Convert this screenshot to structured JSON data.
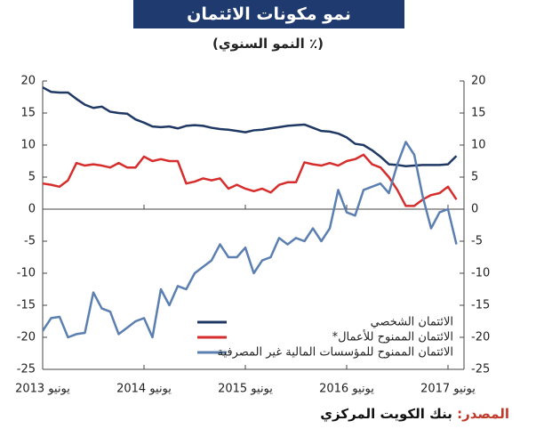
{
  "chart_data": {
    "type": "line",
    "title": "نمو مكونات الائتمان",
    "subtitle": "(٪ النمو السنوي)",
    "categories": [
      "يونيو 2013",
      null,
      null,
      null,
      null,
      null,
      null,
      null,
      null,
      null,
      null,
      null,
      "يونيو 2014",
      null,
      null,
      null,
      null,
      null,
      null,
      null,
      null,
      null,
      null,
      null,
      "يونيو 2015",
      null,
      null,
      null,
      null,
      null,
      null,
      null,
      null,
      null,
      null,
      null,
      "يونيو 2016",
      null,
      null,
      null,
      null,
      null,
      null,
      null,
      null,
      null,
      null,
      null,
      "يونيو 2017",
      null
    ],
    "series": [
      {
        "name": "الائتمان الشخصي",
        "color": "#1f3864",
        "values": [
          19,
          18.3,
          18.2,
          18.2,
          17.2,
          16.3,
          15.8,
          16,
          15.2,
          15,
          14.9,
          14,
          13.5,
          12.9,
          12.8,
          12.9,
          12.6,
          13,
          13.1,
          13,
          12.7,
          12.5,
          12.4,
          12.2,
          12,
          12.3,
          12.4,
          12.6,
          12.8,
          13,
          13.1,
          13.2,
          12.7,
          12.2,
          12.1,
          11.8,
          11.2,
          10.2,
          10,
          9.2,
          8.2,
          7,
          6.9,
          6.7,
          6.8,
          6.9,
          6.9,
          6.9,
          7,
          8.3
        ]
      },
      {
        "name": "الائتمان الممنوح للأعمال*",
        "color": "#d62d2d",
        "values": [
          4,
          3.8,
          3.5,
          4.5,
          7.2,
          6.8,
          7,
          6.8,
          6.5,
          7.2,
          6.5,
          6.5,
          8.2,
          7.5,
          7.8,
          7.5,
          7.5,
          4,
          4.3,
          4.8,
          4.5,
          4.8,
          3.2,
          3.8,
          3.2,
          2.8,
          3.2,
          2.6,
          3.8,
          4.2,
          4.2,
          7.3,
          7,
          6.8,
          7.2,
          6.8,
          7.5,
          7.8,
          8.5,
          7,
          6.5,
          5,
          3,
          0.5,
          0.5,
          1.5,
          2.2,
          2.5,
          3.5,
          1.5
        ]
      },
      {
        "name": "الائتمان الممنوح للمؤسسات المالية غير المصرفية",
        "color": "#5b7fb0",
        "values": [
          -19,
          -17,
          -16.8,
          -20,
          -19.5,
          -19.3,
          -13,
          -15.5,
          -16,
          -19.5,
          -18.5,
          -17.5,
          -17,
          -20,
          -12.5,
          -15,
          -12,
          -12.5,
          -10,
          -9,
          -8,
          -5.5,
          -7.5,
          -7.5,
          -6,
          -10,
          -8,
          -7.5,
          -4.5,
          -5.5,
          -4.5,
          -5,
          -3,
          -5,
          -3,
          3,
          -0.5,
          -1,
          3,
          3.5,
          4,
          2.5,
          7,
          10.5,
          8.5,
          2,
          -3,
          -0.5,
          0,
          -5.5
        ]
      }
    ],
    "ylim": [
      -25,
      20
    ],
    "yticks": [
      -25,
      -20,
      -15,
      -10,
      -5,
      0,
      5,
      10,
      15,
      20
    ],
    "y2lim": [
      -25,
      20
    ],
    "y2ticks": [
      -25,
      -20,
      -15,
      -10,
      -5,
      0,
      5,
      10,
      15,
      20
    ],
    "grid": false,
    "legend": "bottom-right"
  },
  "source": {
    "label": "المصدر:",
    "text": "بنك الكويت المركزي"
  }
}
